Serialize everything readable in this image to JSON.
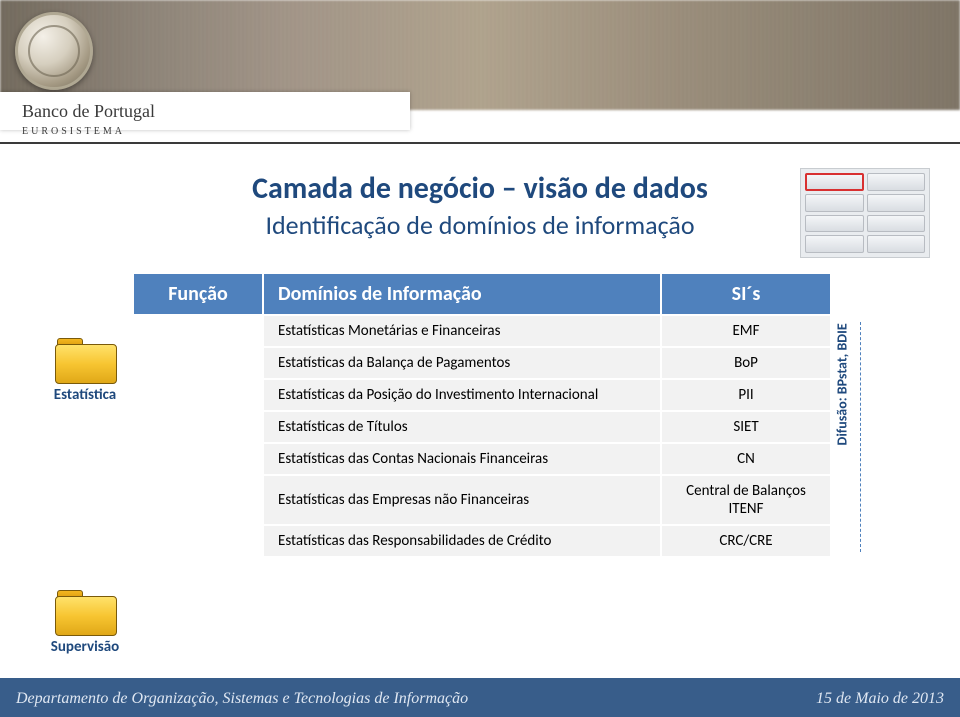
{
  "brand": "Banco de Portugal",
  "brand_sub": "EUROSISTEMA",
  "title": "Camada de negócio – visão de dados",
  "subtitle": "Identificação de domínios de informação",
  "table": {
    "headers": {
      "func": "Função",
      "dom": "Domínios de Informação",
      "sis": "SI´s"
    },
    "rows": [
      {
        "dom": "Estatísticas Monetárias e Financeiras",
        "sis": "EMF"
      },
      {
        "dom": "Estatísticas da Balança de Pagamentos",
        "sis": "BoP"
      },
      {
        "dom": "Estatísticas da Posição do Investimento Internacional",
        "sis": "PII"
      },
      {
        "dom": "Estatísticas  de Títulos",
        "sis": "SIET"
      },
      {
        "dom": "Estatísticas das Contas Nacionais Financeiras",
        "sis": "CN"
      },
      {
        "dom": "Estatísticas das Empresas não Financeiras",
        "sis": "Central de Balanços ITENF"
      },
      {
        "dom": "Estatísticas das Responsabilidades de Crédito",
        "sis": "CRC/CRE"
      }
    ]
  },
  "folders": {
    "estat": "Estatística",
    "superv": "Supervisão"
  },
  "difusao": "Difusão: BPstat, BDIE",
  "footer": {
    "left": "Departamento de Organização, Sistemas e Tecnologias de Informação",
    "right": "15 de Maio de 2013"
  },
  "colors": {
    "accent": "#1f497d",
    "header_bg": "#4f81bd",
    "footer_bg": "#385d8a",
    "row_bg": "#f2f2f2"
  }
}
